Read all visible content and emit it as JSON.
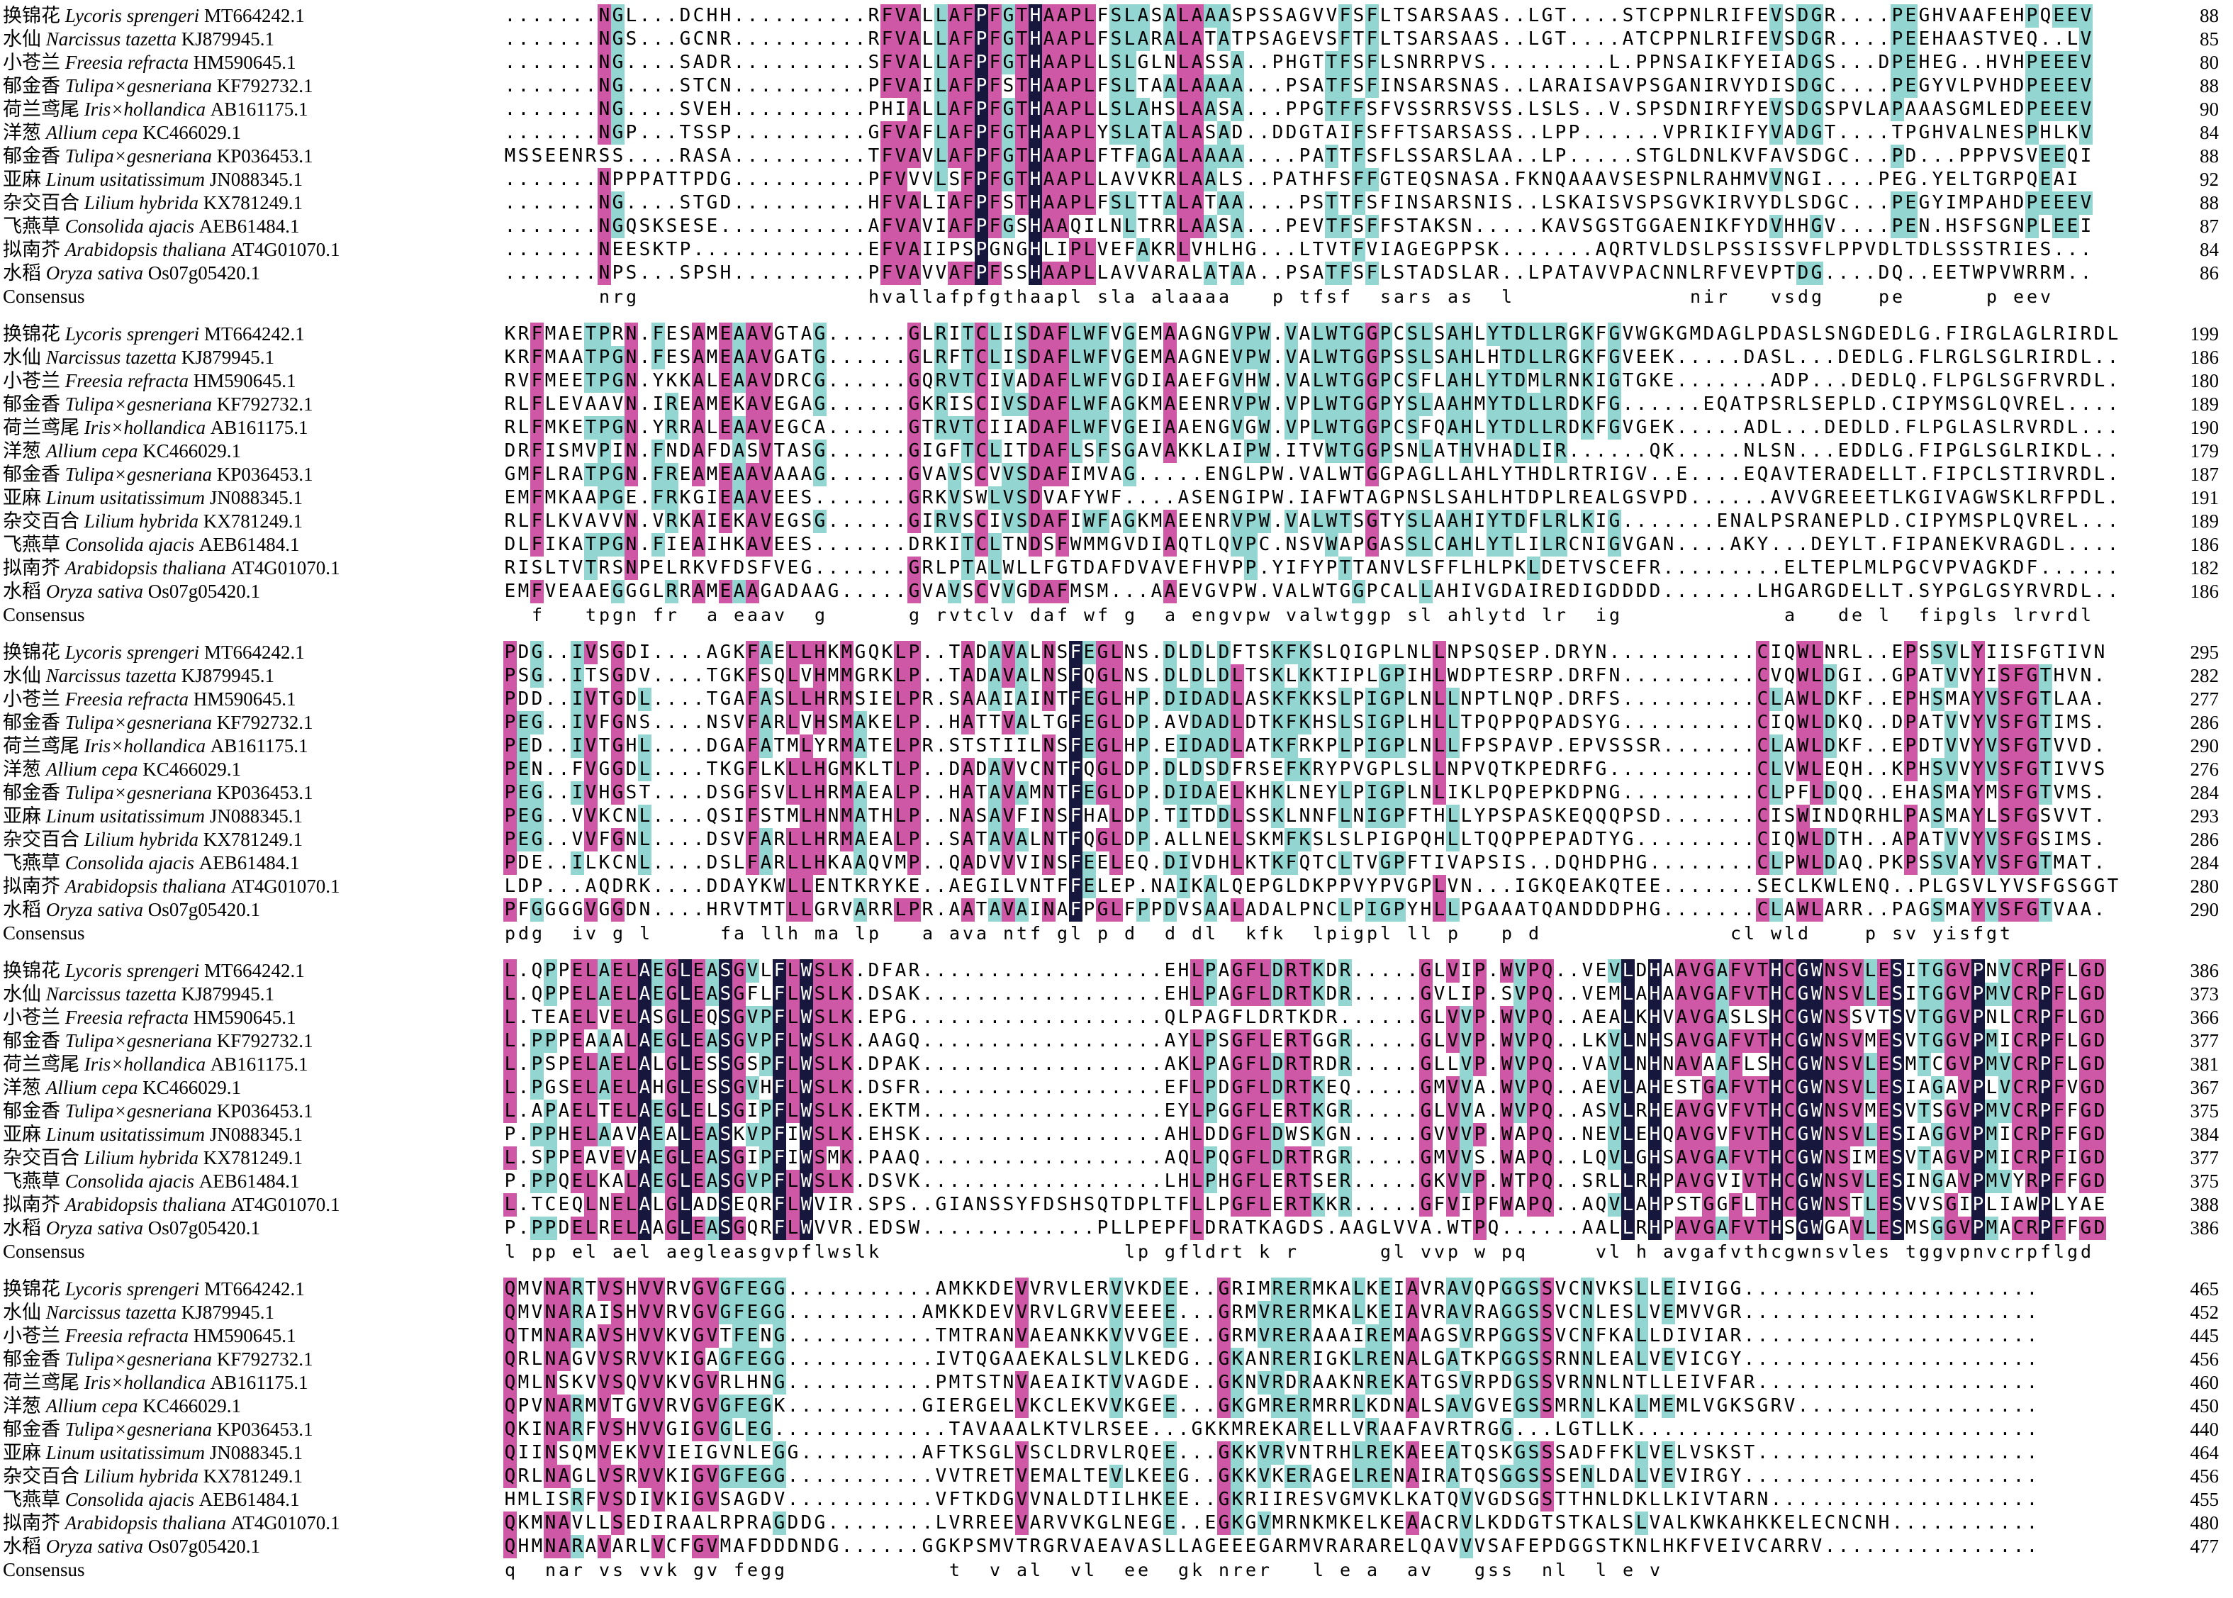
{
  "figure": {
    "consensus_label": "Consensus",
    "colors": {
      "identity_100": "#17173d",
      "identity_75": "#cf58a6",
      "identity_50": "#92d5d1",
      "background": "#ffffff"
    },
    "rows": [
      {
        "cn": "换锦花",
        "species": "Lycoris sprengeri",
        "accession": "MT664242.1"
      },
      {
        "cn": "水仙",
        "species": "Narcissus tazetta",
        "accession": "KJ879945.1"
      },
      {
        "cn": "小苍兰",
        "species": "Freesia refracta",
        "accession": "HM590645.1"
      },
      {
        "cn": "郁金香",
        "species": "Tulipa×gesneriana",
        "accession": "KF792732.1"
      },
      {
        "cn": "荷兰鸢尾",
        "species": "Iris×hollandica",
        "accession": "AB161175.1"
      },
      {
        "cn": "洋葱",
        "species": "Allium cepa",
        "accession": "KC466029.1"
      },
      {
        "cn": "郁金香",
        "species": "Tulipa×gesneriana",
        "accession": "KP036453.1"
      },
      {
        "cn": "亚麻",
        "species": "Linum usitatissimum",
        "accession": "JN088345.1"
      },
      {
        "cn": "杂交百合",
        "species": "Lilium hybrida",
        "accession": "KX781249.1"
      },
      {
        "cn": "飞燕草",
        "species": "Consolida ajacis",
        "accession": "AEB61484.1"
      },
      {
        "cn": "拟南芥",
        "species": "Arabidopsis thaliana",
        "accession": "AT4G01070.1"
      },
      {
        "cn": "水稻",
        "species": "Oryza sativa",
        "accession": "Os07g05420.1"
      }
    ],
    "blocks": [
      {
        "end_numbers": [
          88,
          85,
          80,
          88,
          90,
          84,
          88,
          92,
          88,
          87,
          84,
          86
        ],
        "sequences": [
          ".......NGL...DCHH..........RFVALLAFPFGTHAAPLFSLASALAAASPSSAGVVFSFLTSARSAAS..LGT....STCPPNLRIFEVSDGR....PEGHVAAFEHPQEEV",
          ".......NGS...GCNR..........RFVALLAFPFGTHAAPLFSLARALATATPSAGEVSFTFLTSARSAAS..LGT....ATCPPNLRIFEVSDGR....PEEHAASTVEQ..LV",
          ".......NG....SADR..........SFVALLAFPFGTHAAPLLSLGLNLASSA..PHGTTFSFLSNRRPVS.........L.PPNSAIKFYEIADGS...DPEHEG..HVHPEEEV",
          ".......NG....STCN..........PFVAILAFPFSTHAAPLFSLTAALAAAA...PSATFSFINSARSNAS..LARAISAVPSGANIRVYDISDGC....PEGYVLPVHDPEEEV",
          ".......NG....SVEH..........PHIALLAFPFGTHAAPLLSLAHSLAASA...PPGTFFSFVSSRRSVSS.LSLS..V.SPSDNIRFYEVSDGSPVLAPAAASGMLEDPEEEV",
          ".......NGP...TSSP..........GFVAFLAFPFGTHAAPLYSLATALASAD..DDGTAIFSFFTSARSASS..LPP......VPRIKIFYVADGT....TPGHVALNESPHLKV",
          "MSSEENRSS....RASA..........TFVAVLAFPFGTHAAPLFTFAGALAAAA....PATTFSFLSSARSLAA..LP.....STGLDNLKVFAVSDGC...PD...PPPVSVEEQI",
          ".......NPPPATTPDG..........PFVVVLSFPFGTHAAPLLAVVKRLAALS..PATHFSFFGTEQSNASA.FKNQAAAVSESPNLRAHMVVNGI....PEG.YELTGRPQEAI",
          ".......NG....STGD..........HFVALIAFPFSTHAAPLFSLTTALATAA....PSTTFSFINSARSNIS..LSKAISVSPSGVKIRVYDLSDGC...PEGYIMPAHDPEEEV",
          ".......NGQSKSESE...........AFVAVIAFPFGSHAAQILNLTRRLAASA...PEVTFSFFSTAKSN.....KAVSGSTGGAENIKFYDVHHGV....PEN.HSFSGNPLEEI",
          ".......NEESKTP.............EFVAIIPSPGNGHLIPLVEFAKRLVHLHG...LTVTFVIAGEGPPSK.......AQRTVLDSLPSSISSVFLPPVDLTDLSSSTRIES...",
          ".......NPS...SPSH..........PFVAVVAFPFSSHAAPLLAVVARALATAA..PSATFSFLSTADSLAR..LPATAVVPACNNLRFVEVPTDG....DQ..EETWPVWRRM.."
        ],
        "consensus": "       nrg                 hvallafpfgthaapl sla alaaaa   p tfsf  sars as  l             nir   vsdg    pe      p eev"
      },
      {
        "end_numbers": [
          199,
          186,
          180,
          189,
          190,
          179,
          187,
          191,
          189,
          186,
          182,
          186
        ],
        "sequences": [
          "KRFMAETPRN.FESAMEAAVGTAG......GLRITCLISDAFLWFVGEMAAGNGVPW.VALWTGGPCSLSAHLYTDLLRGKFGVWGKGMDAGLPDASLSNGDEDLG.FIRGLAGLRIRDL",
          "KRFMAATPGN.FESAMEAAVGATG......GLRFTCLISDAFLWFVGEMAAGNEVPW.VALWTGGPSSLSAHLHTDLLRGKFGVEEK.....DASL...DEDLG.FLRGLSGLRIRDL..",
          "RVFMEETPGN.YKKALEAAVDRCG......GQRVTCIVADAFLWFVGDIAAEFGVHW.VALWTGGPCSFLAHLYTDMLRNKIGTGKE.......ADP...DEDLQ.FLPGLSGFRVRDL.",
          "RLFLEVAAVN.IREAMEKAVEGAG......GKRISCIVSDAFLWFAGKMAEENRVPW.VPLWTGGPYSLAAHMYTDLLRDKFG......EQATPSRLSEPLD.CIPYMSGLQVREL....",
          "RLFMKETPGN.YRRALEAAVEGCA......GTRVTCIIADAFLWFVGEIAAENGVGW.VPLWTGGPCSFQAHLYTDLLRDKFGVGEK.....ADL...DEDLD.FLPGLASLRVRDL...",
          "DRFISMVPIN.FNDAFDASVTASG......GIGFTCLITDAFLSFSGAVAKKLAIPW.ITVWTGGPSNLATHVHADLIR......QK.....NLSN...EDDLG.FIPGLSGLRIKDL..",
          "GMFLRATPGN.FREAMEAAVAAAG......GVAVSCVVSDAFIMVAG.....ENGLPW.VALWTGGPAGLLAHLYTHDLRTRIGV..E....EQAVTERADELLT.FIPCLSTIRVRDL.",
          "EMFMKAAPGE.FRKGIEAAVEES.......GRKVSWLVSDVAFYWF....ASENGIPW.IAFWTAGPNSLSAHLHTDPLREALGSVPD......AVVGREEETLKGIVAGWSKLRFPDL.",
          "RLFLKVAVVN.VRKAIEKAVEGSG......GIRVSCIVSDAFIWFAGKMAEENRVPW.VALWTSGTYSLAAHIYTDFLRLKIG.......ENALPSRANEPLD.CIPYMSPLQVREL...",
          "DLFIKATPGN.FIEAIHKAVEES.......DRKITCLTNDSFWMMGVDIAQTLQVPC.NSVWAPGASSLCAHLYTLILRCNIGVGAN....AKY...DEYLT.FIPANEKVRAGDL....",
          "RISLTVTRSNPELRKVFDSFVEG.......GRLPTALWLLFGTDAFDVAVEFHVPP.YIFYPTTANVLSFFLHLPKLDETVSCEFR.........ELTEPLMLPGCVPVAGKDF......",
          "EMFVEAAEGGGLRRAMEAAGADAAG.....GVAVSCVVGDAFMSM...AAEVGVPW.VALWTGGPCALLAHIVGDAIREDIGDDDD.......LHGARGDELLT.SYPGLGSYRVRDL.."
        ],
        "consensus": "  f   tpgn fr  a eaav  g      g rvtclv daf wf g  a engvpw valwtggp sl ahlytd lr  ig            a   de l  fipgls lrvrdl"
      },
      {
        "end_numbers": [
          295,
          282,
          277,
          286,
          290,
          276,
          284,
          293,
          286,
          284,
          280,
          290
        ],
        "sequences": [
          "PDG..IVSGDI....AGKFAELLHKMGQKLP..TADAVALNSFEGLNS.DLDLDFTSKFKSLQIGPLNLLNPSQSEP.DRYN...........CIQWLNRL..EPSSVLYIISFGTIVN",
          "PSG..ITSGDV....TGKFSQLVHMMGRKLP..TADAVALNSFQGLNS.DLDLDLTSKLKKTIPLGPIHLWDPTESRP.DRFN..........CVQWLDGI..GPATVVYISFGTHVN.",
          "PDD..IVTGDL....TGAFASLLHRMSIELPR.SAAAIAINTFEGLHP.DIDADLASKFKKSLPIGPLNLLNPTLNQP.DRFS..........CLAWLDKF..EPHSMAYVSFGTLAA.",
          "PEG..IVFGNS....NSVFARLVHSMAKELP..HATTVALTGFEGLDP.AVDADLDTKFKHSLSIGPLHLLTPQPPQPADSYG..........CIQWLDKQ..DPATVVYVSFGTIMS.",
          "PED..IVTGHL....DGAFATMLYRMATELPR.STSTIILNSFEGLHP.EIDADLATKFRKPLPIGPLNLLFPSPAVP.EPVSSSR.......CLAWLDKF..EPDTVVYVSFGTVVD.",
          "PEN..FVGGDL....TKGFLKLLHGMKLTLP..DADAVVCNTFQGLDP.DLDSDFRSEFKRYPVGPLSLLNPVQTKPEDRFG...........CLVWLEQH..KPHSVVYVSFGTIVVS",
          "PEG..IVHGST....DSGFSVLLHRMAEALP..HATAVAMNTFEGLDP.DIDAELKHKLNEYLPIGPLNLIKLPQPEPKDPNG..........CLPFLDQQ..EHASMAYMSFGTVMS.",
          "PEG..VVKCNL....QSIFSTMLHNMATHLP..NASAVFINSFHALDP.TITDDLSSKLNNFLNIGPFTHLLYPSPASKEQQQPSD.......CISWINDQRHLPASMAYLSFGSVVT.",
          "PEG..VVFGNL....DSVFARLLHRMAEALP..SATAVALNTFQGLDP.ALLNELSKMFKSLSLPIGPQHLLTQQPPEPADTYG.........CIQWLDTH..APATVVYVSFGSIMS.",
          "PDE..ILKCNL....DSLFARLLHKAAQVMP..QADVVVINSFEELEQ.DIVDHLKTKFQTCLTVGPFTIVAPSIS..DQHDPHG........CLPWLDAQ.PKPSSVAYVSFGTMAT.",
          "LDP...AQDRK....DDAYKWLLENTKRYKE..AEGILVNTFFELEP.NAIKALQEPGLDKPPVYPVGPLVN...IGKQEAKQTEE.......SECLKWLENQ..PLGSVLYVSFGSGGT",
          "PFGGGGVGGDN....HRVTMTLLGRVARRLPR.AATAVAINAFPGLFPPDVSAALADALPNCLPIGPYHLLPGAAATQANDDDPHG.......CLAWLARR..PAGSMAYVSFGTVAA."
        ],
        "consensus": "pdg  iv g l     fa llh ma lp   a ava ntf gl p d  d dl  kfk  lpigpl ll p   p d              cl wld    p sv yisfgt"
      },
      {
        "end_numbers": [
          386,
          373,
          366,
          377,
          381,
          367,
          375,
          384,
          377,
          375,
          388,
          386
        ],
        "sequences": [
          "L.QPPELAELAEGLEASGVLFLWSLK.DFAR..................EHLPAGFLDRTKDR.....GLVIP.WVPQ..VEVLDHAAVGAFVTHCGWNSVLESITGGVPNVCRPFLGD",
          "L.QPPELAELAEGLEASGFLFLWSLK.DSAK..................EHLPAGFLDRTKDR.....GVLIP.SVPQ..VEMLAHAAVGAFVTHCGWNSVLESITGGVPMVCRPFLGD",
          "L.TEAELVELASGLEQSGVPFLWSLK.EPG...................QLPAGFLDRTKDR......GLVVP.WVPQ..AEALKHVAVGASLSHCGWNSSVTSVTGGVPNLCRPFLGD",
          "L.PPPEAAALAEGLEASGVPFLWSLK.AAGQ..................AYLPSGFLERTGGR.....GLVVP.WVPQ..LKVLNHSAVGAFVTHCGWNSVMESVTGGVPMICRPFLGD",
          "L.PSPELAELALGLESSGSPFLWSLK.DPAK..................AKLPAGFLDRTRDR.....GLLVP.WVPQ..VAVLNHNAVAAFLSHCGWNSVLESMTCGVPMVCRPFLGD",
          "L.PGSELAELAHGLESSGVHFLWSLK.DSFR..................EFLPDGFLDRTKEQ.....GMVVA.WVPQ..AEVLAHESTGAFVTHCGWNSVLESIAGAVPLVCRPFVGD",
          "L.APAELTELAEGLELSGIPFLWSLK.EKTM..................EYLPGGFLERTKGR.....GLVVA.WVPQ..ASVLRHEAVGVFVTHCGWNSVMESVTSGVPMVCRPFFGD",
          "P.PPHELAAVAEALEASKVPFIWSLK.EHSK..................AHLDDGFLDWSKGN.....GVVVP.WAPQ..NEVLEHQAVGVFVTHCGWNSVLESIAGGVPMICRPFFGD",
          "L.SPPEAVEVAEGLEASGIPFIWSMK.PAAQ..................AQLPQGFLDRTRGR.....GMVVS.WAPQ..LQVLGHSAVGAFVTHCGWNSIMESVTAGVPMICRPFIGD",
          "P.PPQELKALAEGLEASGVPFLWSLK.DSVK..................LHLPHGFLERTSER.....GKVVP.WTPQ..SRLLRHPAVGVIVTHCGWNSVLESINGAVPMVYRPFFGD",
          "L.TCEQLNELALGLADSEQRFLWVIR.SPS..GIANSSYFDSHSQTDPLTFLLPGFLERTKKR.....GFVIPFWAPQ..AQVLAHPSTGGFLTHCGWNSTLESVVSGIPLIAWPLYAE",
          "P.PPDELRELAAGLEASGQRFLWVVR.EDSW.............PLLPEPFLDRATKAGDS.AAGLVVA.WTPQ......AALLRHPAVGAFVTHSGWGAVLESMSGGVPMACRPFFGD"
        ],
        "consensus": "l pp el ael aegleasgvpflwslk                  lp gfldrt k r      gl vvp w pq     vl h avgafvthcgwnsvles tggvpnvcrpflgd"
      },
      {
        "end_numbers": [
          465,
          452,
          445,
          456,
          460,
          450,
          440,
          464,
          456,
          455,
          480,
          477
        ],
        "sequences": [
          "QMVNARTVSHVVRVGVGFEGG...........AMKKDEVVRVLERVVKDEE..GRIMRERMKALKEIAVRAVQPGGSSVCNVKSLLEIVIGG......................",
          "QMVNARAISHVVRVGVGFEGG..........AMKKDEVVRVLGRVVEEEE...GRMVRERMKALKEIAVRAVRAGGSSVCNLESLVEMVVGR......................",
          "QTMNARAVSHVVKVGVTFENG...........TMTRANVAEANKKVVVGEE..GRMVRERAAAIREMAAGSVRPGGSSVCNFKALLDIVIAR......................",
          "QRLNAGVVSRVVKIGAGFEGG...........IVTQGAAEKALSLVLKEDG..GKANRERIGKLRENALGATKPGGSSRNNLEALVEVICGY......................",
          "QMLNSKVVSQVVKVGVRLHNG...........PMTSTNVAEAIKTVVAGDE..GKNVRDRAAKNREKATGSVRPDGSSVRNNLNTLLEIVFAR.....................",
          "QPVNARMVTGVVRVGVGFEGK..........GIERGELVKCLEKVVKGEE...GKGMRERMRRLKDNALSAVGVEGSSMRNLKALMEMLVGKSGRV..................",
          "QKINARFVSHVVGIGVGLEG.............TAVAAALKTVLRSEE...GKKMREKARELLVRAAFAVRTRGG...LGTLLK..............................",
          "QIINSQMVEKVVIEIGVNLEGG.........AFTKSGLVSCLDRVLRQEE...GKKVRVNTRHLREKAEEATQSKGSSSADFFKLVELVSKST.....................",
          "QRLNAGLVSRVVKIGVGFEGG...........VVTRETVEMALTEVLKEEG..GKKVKERAGELRENAIRATQSGGSSSENLDALVEVIRGY......................",
          "HMLISRFVSDIVKIGVSAGDV...........VFTKDGVVNALDTILHKEE..GKRIIRESVGMVKLKATQVVGDSGSTTHNLDKLLKIVTARN....................",
          "QKMNAVLLSEDIRAALRPRAGDDG........LVRREEVARVVKGLNEGE..EGKGVMRNKMKELKEAACRVLKDDGTSTKALSLVALKWKAHKKELECNCNH...........",
          "QHMNARAVARLVCFGVMAFDDDNDG......GGKPSMVTRGRVAEAVASLLAGEEEGARMVRARARELQAVVVSAFEPDGGSTKNLHKFVEIVCARRV................"
        ],
        "consensus": "q  nar vs vvk gv fegg            t  v al  vl  ee  gk nrer   l e a  av   gss  nl  l e v"
      }
    ]
  }
}
